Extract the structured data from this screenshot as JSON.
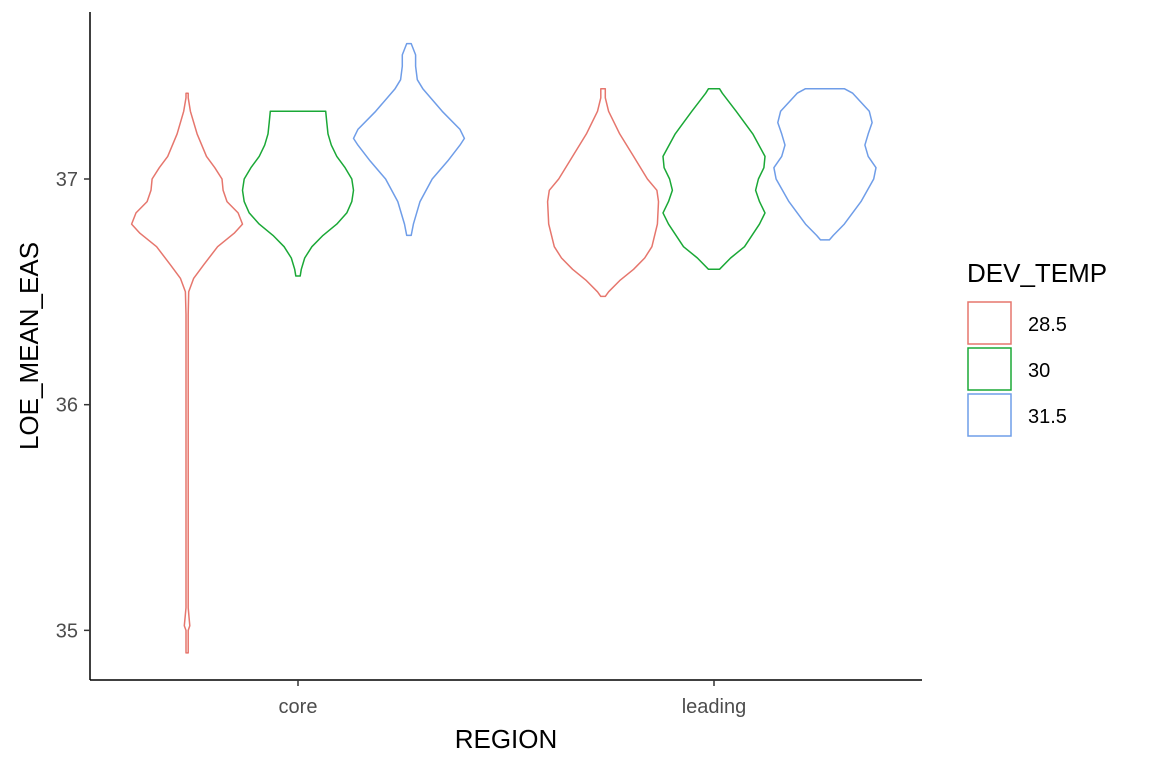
{
  "chart_data": {
    "type": "violin",
    "title": "",
    "xlabel": "REGION",
    "ylabel": "LOE_MEAN_EAS",
    "categories": [
      "core",
      "leading"
    ],
    "yticks": [
      35,
      36,
      37
    ],
    "ylim": [
      34.78,
      37.74
    ],
    "grid": false,
    "legend": {
      "title": "DEV_TEMP",
      "placement": "right",
      "entries": [
        "28.5",
        "30",
        "31.5"
      ]
    },
    "series": [
      {
        "name": "28.5",
        "color": "#e6766d",
        "violins": [
          {
            "category": "core",
            "max_halfwidth": 0.37,
            "profile": [
              [
                34.9,
                0.02
              ],
              [
                35.0,
                0.02
              ],
              [
                35.02,
                0.05
              ],
              [
                35.1,
                0.02
              ],
              [
                36.0,
                0.02
              ],
              [
                36.4,
                0.02
              ],
              [
                36.5,
                0.03
              ],
              [
                36.56,
                0.12
              ],
              [
                36.62,
                0.3
              ],
              [
                36.7,
                0.55
              ],
              [
                36.76,
                0.85
              ],
              [
                36.8,
                1.0
              ],
              [
                36.85,
                0.92
              ],
              [
                36.9,
                0.72
              ],
              [
                36.95,
                0.65
              ],
              [
                37.0,
                0.63
              ],
              [
                37.05,
                0.5
              ],
              [
                37.1,
                0.35
              ],
              [
                37.2,
                0.18
              ],
              [
                37.3,
                0.06
              ],
              [
                37.36,
                0.02
              ],
              [
                37.38,
                0.02
              ]
            ]
          },
          {
            "category": "leading",
            "max_halfwidth": 0.37,
            "profile": [
              [
                36.48,
                0.04
              ],
              [
                36.5,
                0.1
              ],
              [
                36.55,
                0.3
              ],
              [
                36.6,
                0.55
              ],
              [
                36.65,
                0.75
              ],
              [
                36.7,
                0.88
              ],
              [
                36.8,
                0.98
              ],
              [
                36.9,
                1.0
              ],
              [
                36.95,
                0.97
              ],
              [
                37.0,
                0.8
              ],
              [
                37.1,
                0.55
              ],
              [
                37.2,
                0.3
              ],
              [
                37.3,
                0.1
              ],
              [
                37.36,
                0.04
              ],
              [
                37.4,
                0.04
              ]
            ]
          }
        ]
      },
      {
        "name": "30",
        "color": "#1aa836",
        "violins": [
          {
            "category": "core",
            "max_halfwidth": 0.37,
            "profile": [
              [
                36.57,
                0.04
              ],
              [
                36.6,
                0.06
              ],
              [
                36.65,
                0.12
              ],
              [
                36.7,
                0.25
              ],
              [
                36.75,
                0.45
              ],
              [
                36.8,
                0.7
              ],
              [
                36.85,
                0.88
              ],
              [
                36.9,
                0.97
              ],
              [
                36.95,
                1.0
              ],
              [
                37.0,
                0.97
              ],
              [
                37.05,
                0.85
              ],
              [
                37.1,
                0.7
              ],
              [
                37.15,
                0.6
              ],
              [
                37.2,
                0.54
              ],
              [
                37.25,
                0.52
              ],
              [
                37.3,
                0.5
              ]
            ]
          },
          {
            "category": "leading",
            "max_halfwidth": 0.37,
            "profile": [
              [
                36.6,
                0.1
              ],
              [
                36.65,
                0.3
              ],
              [
                36.7,
                0.55
              ],
              [
                36.8,
                0.82
              ],
              [
                36.85,
                0.92
              ],
              [
                36.9,
                0.82
              ],
              [
                36.95,
                0.75
              ],
              [
                37.0,
                0.8
              ],
              [
                37.05,
                0.9
              ],
              [
                37.1,
                0.92
              ],
              [
                37.2,
                0.7
              ],
              [
                37.3,
                0.4
              ],
              [
                37.38,
                0.15
              ],
              [
                37.4,
                0.1
              ]
            ]
          }
        ]
      },
      {
        "name": "31.5",
        "color": "#6f9de8",
        "violins": [
          {
            "category": "core",
            "max_halfwidth": 0.37,
            "profile": [
              [
                36.75,
                0.04
              ],
              [
                36.8,
                0.08
              ],
              [
                36.9,
                0.2
              ],
              [
                37.0,
                0.42
              ],
              [
                37.08,
                0.7
              ],
              [
                37.15,
                0.92
              ],
              [
                37.18,
                1.0
              ],
              [
                37.22,
                0.92
              ],
              [
                37.3,
                0.6
              ],
              [
                37.4,
                0.25
              ],
              [
                37.44,
                0.15
              ],
              [
                37.5,
                0.12
              ],
              [
                37.55,
                0.12
              ],
              [
                37.6,
                0.04
              ]
            ]
          },
          {
            "category": "leading",
            "max_halfwidth": 0.37,
            "profile": [
              [
                36.73,
                0.08
              ],
              [
                36.75,
                0.15
              ],
              [
                36.8,
                0.35
              ],
              [
                36.9,
                0.65
              ],
              [
                37.0,
                0.88
              ],
              [
                37.05,
                0.92
              ],
              [
                37.1,
                0.78
              ],
              [
                37.15,
                0.72
              ],
              [
                37.2,
                0.78
              ],
              [
                37.25,
                0.85
              ],
              [
                37.3,
                0.8
              ],
              [
                37.38,
                0.5
              ],
              [
                37.4,
                0.35
              ]
            ]
          }
        ]
      }
    ]
  }
}
